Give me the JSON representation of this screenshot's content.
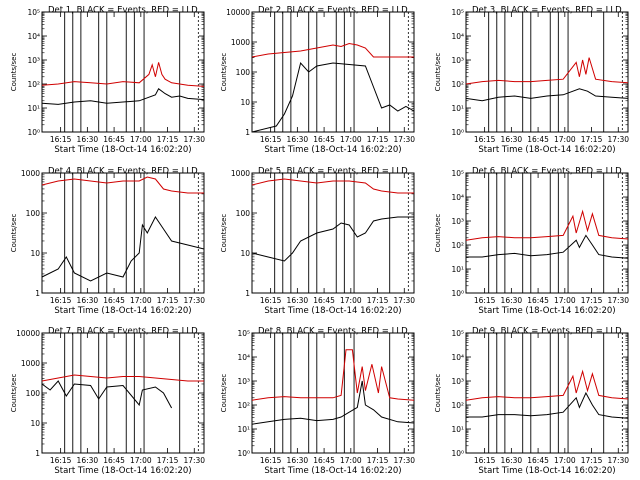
{
  "xlabel_prefix": "Start Time",
  "xlabel_date": "(18-Oct-14 16:02:20)",
  "ylabel": "Counts/sec",
  "x_ticks": [
    "16:15",
    "16:30",
    "16:45",
    "17:00",
    "17:15",
    "17:30"
  ],
  "colors": {
    "events": "#000000",
    "lld": "#d00000"
  },
  "chart_data": [
    {
      "type": "line",
      "title": "Det 1, BLACK = Events, RED = LLD",
      "ylog": true,
      "ylim_exp": [
        0,
        5
      ],
      "tick_style": "exp",
      "events": [
        [
          0,
          1.2
        ],
        [
          0.1,
          1.15
        ],
        [
          0.2,
          1.25
        ],
        [
          0.3,
          1.3
        ],
        [
          0.4,
          1.2
        ],
        [
          0.5,
          1.25
        ],
        [
          0.6,
          1.3
        ],
        [
          0.7,
          1.55
        ],
        [
          0.72,
          1.8
        ],
        [
          0.76,
          1.6
        ],
        [
          0.8,
          1.45
        ],
        [
          0.85,
          1.5
        ],
        [
          0.9,
          1.4
        ],
        [
          1,
          1.35
        ]
      ],
      "lld": [
        [
          0,
          1.95
        ],
        [
          0.1,
          2.0
        ],
        [
          0.2,
          2.1
        ],
        [
          0.3,
          2.05
        ],
        [
          0.4,
          2.0
        ],
        [
          0.5,
          2.1
        ],
        [
          0.6,
          2.05
        ],
        [
          0.66,
          2.4
        ],
        [
          0.68,
          2.8
        ],
        [
          0.7,
          2.3
        ],
        [
          0.72,
          2.9
        ],
        [
          0.74,
          2.4
        ],
        [
          0.76,
          2.2
        ],
        [
          0.8,
          2.05
        ],
        [
          0.9,
          1.95
        ],
        [
          1,
          1.9
        ]
      ]
    },
    {
      "type": "line",
      "title": "Det 2, BLACK = Events, RED = LLD",
      "ylog": true,
      "ylim_exp": [
        0,
        4
      ],
      "tick_style": "plain",
      "events": [
        [
          0,
          0.0
        ],
        [
          0.15,
          0.2
        ],
        [
          0.2,
          0.6
        ],
        [
          0.25,
          1.2
        ],
        [
          0.3,
          2.3
        ],
        [
          0.35,
          2.0
        ],
        [
          0.4,
          2.2
        ],
        [
          0.5,
          2.3
        ],
        [
          0.6,
          2.25
        ],
        [
          0.7,
          2.2
        ],
        [
          0.75,
          1.5
        ],
        [
          0.8,
          0.8
        ],
        [
          0.85,
          0.9
        ],
        [
          0.9,
          0.7
        ],
        [
          0.95,
          0.85
        ],
        [
          1,
          0.7
        ]
      ],
      "lld": [
        [
          0,
          2.5
        ],
        [
          0.1,
          2.6
        ],
        [
          0.2,
          2.65
        ],
        [
          0.3,
          2.7
        ],
        [
          0.4,
          2.8
        ],
        [
          0.5,
          2.9
        ],
        [
          0.55,
          2.85
        ],
        [
          0.6,
          2.95
        ],
        [
          0.65,
          2.9
        ],
        [
          0.7,
          2.8
        ],
        [
          0.75,
          2.5
        ],
        [
          0.8,
          2.5
        ],
        [
          0.9,
          2.5
        ],
        [
          1,
          2.5
        ]
      ]
    },
    {
      "type": "line",
      "title": "Det 3, BLACK = Events, RED = LLD",
      "ylog": true,
      "ylim_exp": [
        0,
        5
      ],
      "tick_style": "exp",
      "events": [
        [
          0,
          1.4
        ],
        [
          0.1,
          1.3
        ],
        [
          0.2,
          1.45
        ],
        [
          0.3,
          1.5
        ],
        [
          0.4,
          1.4
        ],
        [
          0.5,
          1.5
        ],
        [
          0.6,
          1.55
        ],
        [
          0.7,
          1.8
        ],
        [
          0.75,
          1.7
        ],
        [
          0.8,
          1.5
        ],
        [
          0.9,
          1.45
        ],
        [
          1,
          1.4
        ]
      ],
      "lld": [
        [
          0,
          2.0
        ],
        [
          0.1,
          2.1
        ],
        [
          0.2,
          2.15
        ],
        [
          0.3,
          2.1
        ],
        [
          0.4,
          2.1
        ],
        [
          0.5,
          2.15
        ],
        [
          0.6,
          2.2
        ],
        [
          0.68,
          2.9
        ],
        [
          0.7,
          2.3
        ],
        [
          0.72,
          3.0
        ],
        [
          0.74,
          2.4
        ],
        [
          0.76,
          3.1
        ],
        [
          0.8,
          2.2
        ],
        [
          0.9,
          2.1
        ],
        [
          1,
          2.05
        ]
      ]
    },
    {
      "type": "line",
      "title": "Det 4, BLACK = Events, RED = LLD",
      "ylog": true,
      "ylim_exp": [
        0,
        3
      ],
      "tick_style": "plain",
      "events": [
        [
          0,
          0.4
        ],
        [
          0.1,
          0.6
        ],
        [
          0.15,
          0.9
        ],
        [
          0.2,
          0.5
        ],
        [
          0.3,
          0.3
        ],
        [
          0.4,
          0.5
        ],
        [
          0.5,
          0.4
        ],
        [
          0.55,
          0.8
        ],
        [
          0.6,
          1.0
        ],
        [
          0.62,
          1.7
        ],
        [
          0.65,
          1.5
        ],
        [
          0.7,
          1.9
        ],
        [
          0.75,
          1.6
        ],
        [
          0.8,
          1.3
        ],
        [
          0.9,
          1.2
        ],
        [
          1,
          1.1
        ]
      ],
      "lld": [
        [
          0,
          2.7
        ],
        [
          0.1,
          2.8
        ],
        [
          0.2,
          2.85
        ],
        [
          0.3,
          2.8
        ],
        [
          0.4,
          2.75
        ],
        [
          0.5,
          2.8
        ],
        [
          0.6,
          2.8
        ],
        [
          0.65,
          2.9
        ],
        [
          0.7,
          2.85
        ],
        [
          0.75,
          2.6
        ],
        [
          0.8,
          2.55
        ],
        [
          0.9,
          2.5
        ],
        [
          1,
          2.5
        ]
      ]
    },
    {
      "type": "line",
      "title": "Det 5, BLACK = Events, RED = LLD",
      "ylog": true,
      "ylim_exp": [
        0,
        3
      ],
      "tick_style": "plain",
      "events": [
        [
          0,
          1.0
        ],
        [
          0.1,
          0.9
        ],
        [
          0.2,
          0.8
        ],
        [
          0.25,
          1.0
        ],
        [
          0.3,
          1.3
        ],
        [
          0.4,
          1.5
        ],
        [
          0.5,
          1.6
        ],
        [
          0.55,
          1.75
        ],
        [
          0.6,
          1.7
        ],
        [
          0.65,
          1.4
        ],
        [
          0.7,
          1.5
        ],
        [
          0.75,
          1.8
        ],
        [
          0.8,
          1.85
        ],
        [
          0.9,
          1.9
        ],
        [
          1,
          1.9
        ]
      ],
      "lld": [
        [
          0,
          2.7
        ],
        [
          0.1,
          2.8
        ],
        [
          0.2,
          2.85
        ],
        [
          0.3,
          2.8
        ],
        [
          0.4,
          2.75
        ],
        [
          0.5,
          2.8
        ],
        [
          0.6,
          2.8
        ],
        [
          0.7,
          2.75
        ],
        [
          0.75,
          2.6
        ],
        [
          0.8,
          2.55
        ],
        [
          0.9,
          2.5
        ],
        [
          1,
          2.5
        ]
      ]
    },
    {
      "type": "line",
      "title": "Det 6, BLACK = Events, RED = LLD",
      "ylog": true,
      "ylim_exp": [
        0,
        5
      ],
      "tick_style": "exp",
      "events": [
        [
          0,
          1.5
        ],
        [
          0.1,
          1.5
        ],
        [
          0.2,
          1.6
        ],
        [
          0.3,
          1.65
        ],
        [
          0.4,
          1.55
        ],
        [
          0.5,
          1.6
        ],
        [
          0.6,
          1.7
        ],
        [
          0.68,
          2.2
        ],
        [
          0.7,
          1.9
        ],
        [
          0.74,
          2.4
        ],
        [
          0.78,
          2.0
        ],
        [
          0.82,
          1.6
        ],
        [
          0.9,
          1.5
        ],
        [
          1,
          1.45
        ]
      ],
      "lld": [
        [
          0,
          2.2
        ],
        [
          0.1,
          2.3
        ],
        [
          0.2,
          2.35
        ],
        [
          0.3,
          2.3
        ],
        [
          0.4,
          2.3
        ],
        [
          0.5,
          2.35
        ],
        [
          0.6,
          2.4
        ],
        [
          0.66,
          3.2
        ],
        [
          0.68,
          2.5
        ],
        [
          0.72,
          3.4
        ],
        [
          0.75,
          2.6
        ],
        [
          0.78,
          3.3
        ],
        [
          0.82,
          2.4
        ],
        [
          0.9,
          2.3
        ],
        [
          1,
          2.25
        ]
      ]
    },
    {
      "type": "line",
      "title": "Det 7, BLACK = Events, RED = LLD",
      "ylog": true,
      "ylim_exp": [
        0,
        4
      ],
      "tick_style": "plain",
      "events": [
        [
          0,
          2.3
        ],
        [
          0.05,
          2.1
        ],
        [
          0.1,
          2.4
        ],
        [
          0.15,
          1.9
        ],
        [
          0.2,
          2.3
        ],
        [
          0.3,
          2.25
        ],
        [
          0.35,
          1.8
        ],
        [
          0.4,
          2.2
        ],
        [
          0.5,
          2.25
        ],
        [
          0.6,
          1.6
        ],
        [
          0.62,
          2.1
        ],
        [
          0.7,
          2.2
        ],
        [
          0.75,
          2.0
        ],
        [
          0.8,
          1.5
        ]
      ],
      "lld": [
        [
          0,
          2.4
        ],
        [
          0.1,
          2.5
        ],
        [
          0.2,
          2.6
        ],
        [
          0.3,
          2.55
        ],
        [
          0.4,
          2.5
        ],
        [
          0.5,
          2.55
        ],
        [
          0.6,
          2.55
        ],
        [
          0.7,
          2.5
        ],
        [
          0.8,
          2.45
        ],
        [
          0.9,
          2.4
        ],
        [
          1,
          2.4
        ]
      ]
    },
    {
      "type": "line",
      "title": "Det 8, BLACK = Events, RED = LLD",
      "ylog": true,
      "ylim_exp": [
        0,
        5
      ],
      "tick_style": "exp",
      "events": [
        [
          0,
          1.2
        ],
        [
          0.1,
          1.3
        ],
        [
          0.2,
          1.4
        ],
        [
          0.3,
          1.45
        ],
        [
          0.4,
          1.35
        ],
        [
          0.5,
          1.4
        ],
        [
          0.55,
          1.5
        ],
        [
          0.6,
          1.7
        ],
        [
          0.65,
          1.9
        ],
        [
          0.68,
          3.0
        ],
        [
          0.7,
          2.0
        ],
        [
          0.75,
          1.8
        ],
        [
          0.8,
          1.5
        ],
        [
          0.9,
          1.3
        ],
        [
          1,
          1.25
        ]
      ],
      "lld": [
        [
          0,
          2.2
        ],
        [
          0.1,
          2.3
        ],
        [
          0.2,
          2.35
        ],
        [
          0.3,
          2.3
        ],
        [
          0.4,
          2.3
        ],
        [
          0.5,
          2.3
        ],
        [
          0.55,
          2.4
        ],
        [
          0.58,
          4.3
        ],
        [
          0.62,
          4.3
        ],
        [
          0.65,
          2.5
        ],
        [
          0.68,
          3.6
        ],
        [
          0.7,
          2.6
        ],
        [
          0.74,
          3.7
        ],
        [
          0.78,
          2.5
        ],
        [
          0.8,
          3.6
        ],
        [
          0.85,
          2.3
        ],
        [
          0.9,
          2.25
        ],
        [
          1,
          2.2
        ]
      ]
    },
    {
      "type": "line",
      "title": "Det 9, BLACK = Events, RED = LLD",
      "ylog": true,
      "ylim_exp": [
        0,
        5
      ],
      "tick_style": "exp",
      "events": [
        [
          0,
          1.5
        ],
        [
          0.1,
          1.5
        ],
        [
          0.2,
          1.6
        ],
        [
          0.3,
          1.6
        ],
        [
          0.4,
          1.55
        ],
        [
          0.5,
          1.6
        ],
        [
          0.6,
          1.7
        ],
        [
          0.68,
          2.3
        ],
        [
          0.7,
          1.9
        ],
        [
          0.74,
          2.5
        ],
        [
          0.78,
          2.0
        ],
        [
          0.82,
          1.6
        ],
        [
          0.9,
          1.5
        ],
        [
          1,
          1.45
        ]
      ],
      "lld": [
        [
          0,
          2.2
        ],
        [
          0.1,
          2.3
        ],
        [
          0.2,
          2.35
        ],
        [
          0.3,
          2.3
        ],
        [
          0.4,
          2.3
        ],
        [
          0.5,
          2.35
        ],
        [
          0.6,
          2.4
        ],
        [
          0.66,
          3.2
        ],
        [
          0.68,
          2.5
        ],
        [
          0.72,
          3.4
        ],
        [
          0.75,
          2.6
        ],
        [
          0.78,
          3.3
        ],
        [
          0.82,
          2.4
        ],
        [
          0.9,
          2.3
        ],
        [
          1,
          2.25
        ]
      ]
    }
  ]
}
